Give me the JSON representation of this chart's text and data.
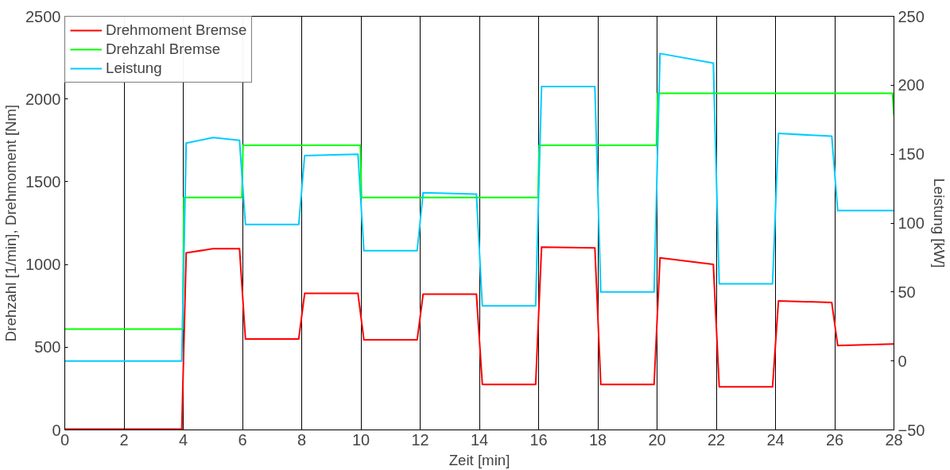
{
  "chart_data": {
    "type": "line",
    "xlabel": "Zeit [min]",
    "ylabel": "Drehzahl [1/min], Drehmoment [Nm]",
    "y2label": "Leistung [kW]",
    "xlim": [
      0,
      28
    ],
    "xticks": [
      0,
      2,
      4,
      6,
      8,
      10,
      12,
      14,
      16,
      18,
      20,
      22,
      24,
      26,
      28
    ],
    "ylim": [
      0,
      2500
    ],
    "yticks": [
      0,
      500,
      1000,
      1500,
      2000,
      2500
    ],
    "y2lim": [
      -50,
      250
    ],
    "y2ticks": [
      -50,
      0,
      50,
      100,
      150,
      200,
      250
    ],
    "grid": "x",
    "legend": "top left",
    "line_style": "solid",
    "marker": "none",
    "series": [
      {
        "name": "Drehmoment Bremse",
        "color": "#ff0000",
        "x": [
          0,
          3.95,
          4.1,
          5,
          5.9,
          6.1,
          7.9,
          8.1,
          9.9,
          10.1,
          11.9,
          12.1,
          13.9,
          14.1,
          15.9,
          16.1,
          17.9,
          18.1,
          19.9,
          20.1,
          21.9,
          22.1,
          23.9,
          24.1,
          25.9,
          26.1,
          28
        ],
        "values": [
          5,
          5,
          1070,
          1095,
          1095,
          550,
          550,
          825,
          825,
          545,
          545,
          820,
          820,
          275,
          275,
          1105,
          1100,
          275,
          275,
          1040,
          1000,
          260,
          260,
          780,
          770,
          510,
          520
        ]
      },
      {
        "name": "Drehzahl Bremse",
        "color": "#00ff00",
        "x": [
          0,
          3.98,
          4.02,
          5.98,
          6.02,
          9.98,
          10.02,
          15.98,
          16.02,
          19.98,
          20.02,
          27.95,
          28
        ],
        "values": [
          610,
          610,
          1405,
          1405,
          1720,
          1720,
          1405,
          1405,
          1720,
          1720,
          2035,
          2035,
          1900
        ]
      },
      {
        "name": "Leistung",
        "color": "#00ccff",
        "axis": "y2",
        "x": [
          0,
          3.95,
          4.1,
          5,
          5.9,
          6.1,
          7.9,
          8.1,
          9.9,
          10.1,
          11.9,
          12.1,
          13.9,
          14.1,
          15.9,
          16.1,
          17.9,
          18.1,
          19.9,
          20.1,
          21.9,
          22.1,
          23.9,
          24.1,
          25.9,
          26.1,
          28
        ],
        "values": [
          0,
          0,
          158,
          162,
          160,
          99,
          99,
          149,
          150,
          80,
          80,
          122,
          121,
          40,
          40,
          199,
          199,
          50,
          50,
          223,
          216,
          56,
          56,
          165,
          163,
          109,
          109
        ]
      }
    ]
  }
}
